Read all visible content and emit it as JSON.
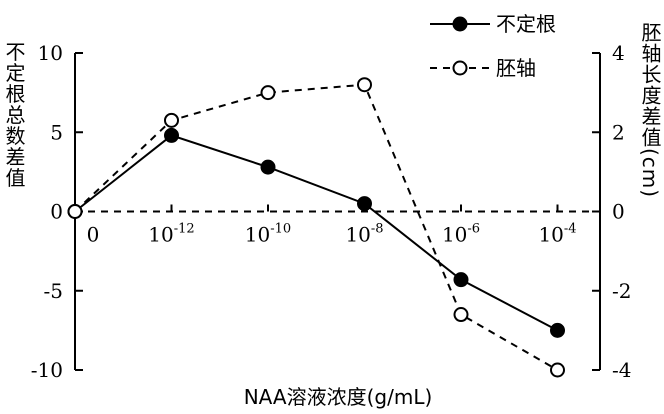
{
  "chart_data": {
    "type": "line",
    "categories": [
      "0",
      "10-12",
      "10-10",
      "10-8",
      "10-6",
      "10-4"
    ],
    "category_ticks": [
      {
        "base": "0",
        "exp": ""
      },
      {
        "base": "10",
        "exp": "-12"
      },
      {
        "base": "10",
        "exp": "-10"
      },
      {
        "base": "10",
        "exp": "-8"
      },
      {
        "base": "10",
        "exp": "-6"
      },
      {
        "base": "10",
        "exp": "-4"
      }
    ],
    "xlabel": "NAA溶液浓度(g/mL)",
    "y_left": {
      "label": "不定根总数差值",
      "lim": [
        -10,
        10
      ],
      "ticks": [
        10,
        5,
        0,
        -5,
        -10
      ],
      "tick_labels": [
        "10",
        "5",
        "0",
        "-5",
        "-10"
      ]
    },
    "y_right": {
      "label": "胚轴长度差值(cm)",
      "lim": [
        -4,
        4
      ],
      "ticks": [
        4,
        2,
        0,
        -2,
        -4
      ],
      "tick_labels": [
        "4",
        "2",
        "0",
        "-2",
        "-4"
      ]
    },
    "series": [
      {
        "name": "不定根",
        "axis": "left",
        "marker": "filled-circle",
        "line": "solid",
        "values": [
          0,
          4.8,
          2.8,
          0.5,
          -4.3,
          -7.5
        ]
      },
      {
        "name": "胚轴",
        "axis": "right",
        "marker": "open-circle",
        "line": "dashed",
        "values": [
          0,
          2.3,
          3.0,
          3.2,
          -2.6,
          -4.0
        ]
      }
    ],
    "zero_reference_line": "dashed",
    "legend_position": "top-right",
    "grid": false,
    "colors": {
      "line": "#000000",
      "background": "#ffffff"
    }
  }
}
